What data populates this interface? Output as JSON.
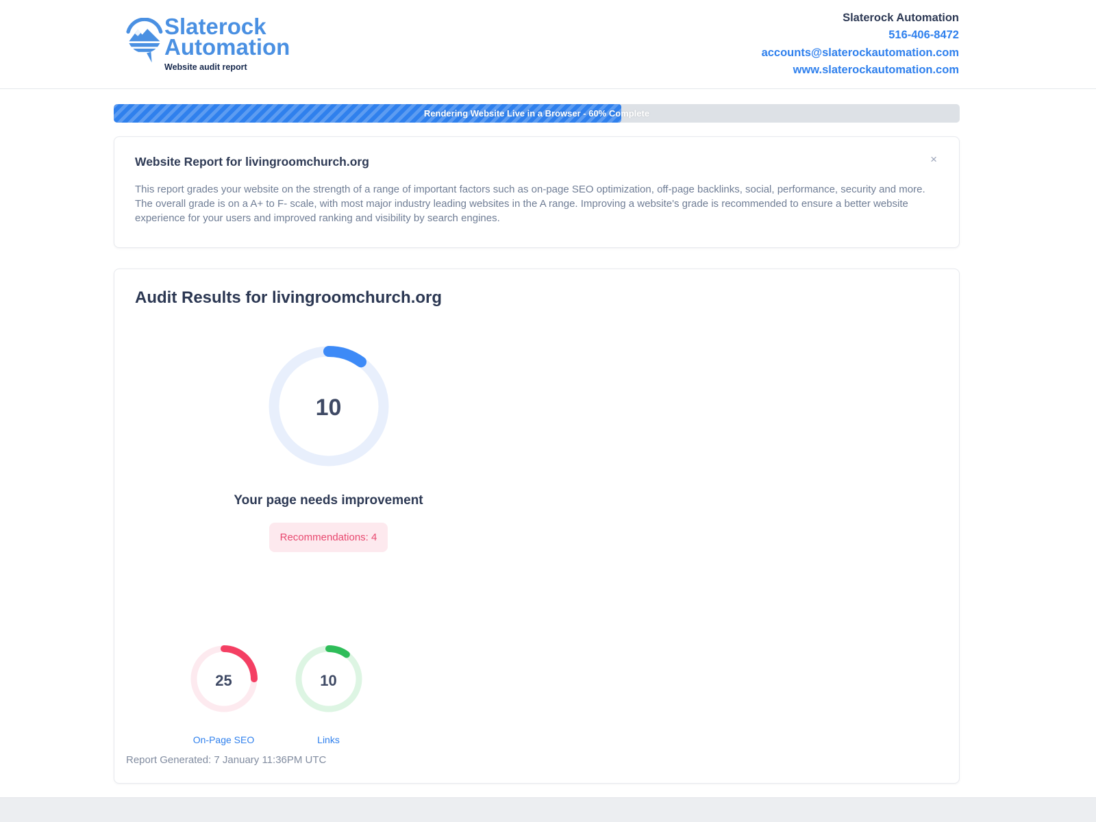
{
  "theme": {
    "brand_blue": "#4a90e2",
    "link_blue": "#2f80ed",
    "heading_navy": "#2e3a55",
    "body_gray": "#6f7d95"
  },
  "header": {
    "logo": {
      "icon": "magnifier-mountain-logo",
      "brand_line1": "Slaterock",
      "brand_line2": "Automation",
      "tagline": "Website audit report"
    },
    "contact": {
      "company": "Slaterock Automation",
      "phone": "516-406-8472",
      "email": "accounts@slaterockautomation.com",
      "website": "www.slaterockautomation.com"
    }
  },
  "progress": {
    "label": "Rendering Website Live in a Browser - 60% Complete",
    "percent": 60,
    "fill_color": "#2f80ed",
    "track_color": "#dde1e6"
  },
  "report_card": {
    "title": "Website Report for livingroomchurch.org",
    "close_label": "×",
    "description": "This report grades your website on the strength of a range of important factors such as on-page SEO optimization, off-page backlinks, social, performance, security and more. The overall grade is on a A+ to F- scale, with most major industry leading websites in the A range. Improving a website's grade is recommended to ensure a better website experience for your users and improved ranking and visibility by search engines."
  },
  "audit_card": {
    "title": "Audit Results for livingroomchurch.org",
    "overall_gauge": {
      "value": "10",
      "percent": 10,
      "arc_color": "#3d8af7",
      "track_color": "#e8effc"
    },
    "status_text": "Your page needs improvement",
    "recommendations_badge": {
      "label": "Recommendations: 4",
      "text_color": "#e8486f",
      "bg_color": "#fde9ee"
    },
    "sub_gauges": [
      {
        "label": "On-Page SEO",
        "value": "25",
        "percent": 25,
        "arc_color": "#f43f63",
        "track_color": "#fdeaef"
      },
      {
        "label": "Links",
        "value": "10",
        "percent": 10,
        "arc_color": "#2ebd59",
        "track_color": "#ddf5e3"
      }
    ],
    "generated_text": "Report Generated: 7 January 11:36PM UTC"
  }
}
